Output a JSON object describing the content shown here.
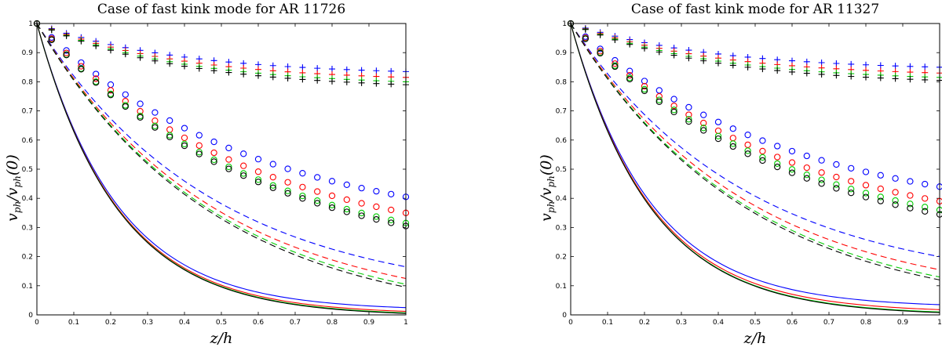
{
  "chart_data": [
    {
      "type": "line",
      "title": "Case of fast kink mode for AR 11726",
      "xlabel": "z/h",
      "ylabel": "v_ph/v_ph(0)",
      "xlim": [
        0,
        1
      ],
      "ylim": [
        0,
        1
      ],
      "xticks": [
        "0",
        "0.1",
        "0.2",
        "0.3",
        "0.4",
        "0.5",
        "0.6",
        "0.7",
        "0.8",
        "0.9",
        "1"
      ],
      "yticks": [
        "0",
        "0.1",
        "0.2",
        "0.3",
        "0.4",
        "0.5",
        "0.6",
        "0.7",
        "0.8",
        "0.9",
        "1"
      ],
      "grid": false,
      "families": [
        {
          "style": "plus",
          "marker": "+",
          "end_values": [
            0.835,
            0.815,
            0.8,
            0.79
          ]
        },
        {
          "style": "circle",
          "marker": "o",
          "end_values": [
            0.405,
            0.35,
            0.315,
            0.305
          ]
        },
        {
          "style": "dashed",
          "marker": "--",
          "end_values": [
            0.165,
            0.125,
            0.105,
            0.095
          ]
        },
        {
          "style": "solid",
          "marker": "-",
          "end_values": [
            0.025,
            0.012,
            0.007,
            0.005
          ]
        }
      ],
      "series_colors": [
        "#0000ff",
        "#ff0000",
        "#00cc00",
        "#000000"
      ]
    },
    {
      "type": "line",
      "title": "Case of fast kink mode for AR 11327",
      "xlabel": "z/h",
      "ylabel": "v_ph/v_ph(0)",
      "xlim": [
        0,
        1
      ],
      "ylim": [
        0,
        1
      ],
      "xticks": [
        "0",
        "0.1",
        "0.2",
        "0.3",
        "0.4",
        "0.5",
        "0.6",
        "0.7",
        "0.8",
        "0.9",
        "1"
      ],
      "yticks": [
        "0",
        "0.1",
        "0.2",
        "0.3",
        "0.4",
        "0.5",
        "0.6",
        "0.7",
        "0.8",
        "0.9",
        "1"
      ],
      "grid": false,
      "families": [
        {
          "style": "plus",
          "marker": "+",
          "end_values": [
            0.85,
            0.83,
            0.815,
            0.805
          ]
        },
        {
          "style": "circle",
          "marker": "o",
          "end_values": [
            0.44,
            0.39,
            0.36,
            0.345
          ]
        },
        {
          "style": "dashed",
          "marker": "--",
          "end_values": [
            0.2,
            0.155,
            0.13,
            0.12
          ]
        },
        {
          "style": "solid",
          "marker": "-",
          "end_values": [
            0.035,
            0.018,
            0.01,
            0.008
          ]
        }
      ],
      "series_colors": [
        "#0000ff",
        "#ff0000",
        "#00cc00",
        "#000000"
      ]
    }
  ]
}
